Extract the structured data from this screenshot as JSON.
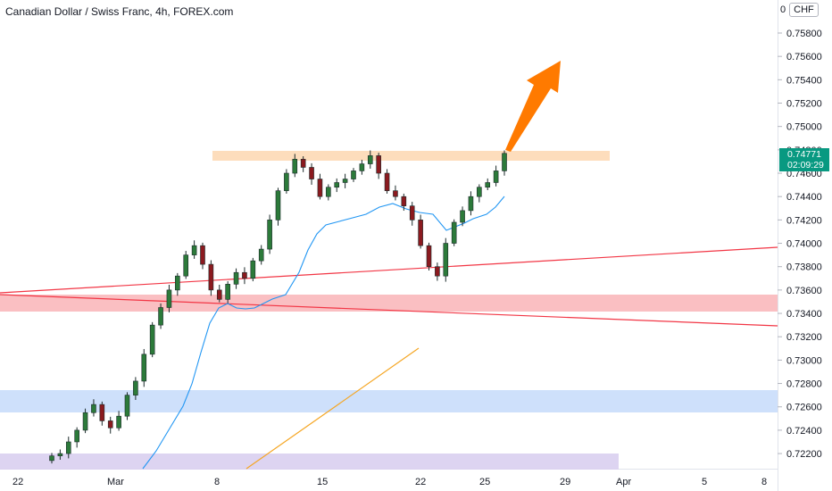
{
  "header": {
    "title": "Canadian Dollar / Swiss Franc, 4h, FOREX.com",
    "currency": "CHF",
    "currency_marker": "0"
  },
  "last_price": {
    "value": "0.74771",
    "countdown": "02:09:29"
  },
  "colors": {
    "up": "#089981",
    "down": "#f23645",
    "candle_body_dark": "#1b2a2a",
    "ma_line": "#2196f3",
    "resistance_zone": "#fdd9b5",
    "red_zone": "#f8a9ad",
    "blue_zone": "#c5dafa",
    "purple_zone": "#d9cff0",
    "trend_red": "#f23645",
    "trend_orange": "#f5a623",
    "arrow": "#ff7a00",
    "price_tag": "#089981"
  },
  "chart_data": {
    "type": "candlestick",
    "title": "Canadian Dollar / Swiss Franc, 4h, FOREX.com",
    "y_axis": {
      "ticks": [
        "0.75800",
        "0.75600",
        "0.75400",
        "0.75200",
        "0.75000",
        "0.74800",
        "0.74600",
        "0.74400",
        "0.74200",
        "0.74000",
        "0.73800",
        "0.73600",
        "0.73400",
        "0.73200",
        "0.73000",
        "0.72800",
        "0.72600",
        "0.72400",
        "0.72200"
      ],
      "range": [
        0.7215,
        0.7595
      ]
    },
    "x_axis": {
      "ticks": [
        "22",
        "Mar",
        "8",
        "15",
        "22",
        "25",
        "29",
        "Apr",
        "5",
        "8"
      ]
    },
    "ohlc_close_approx": [
      0.7218,
      0.722,
      0.723,
      0.724,
      0.7255,
      0.7262,
      0.7248,
      0.7242,
      0.7252,
      0.727,
      0.7282,
      0.7305,
      0.733,
      0.7345,
      0.736,
      0.7372,
      0.739,
      0.7398,
      0.7382,
      0.736,
      0.7352,
      0.7365,
      0.7375,
      0.737,
      0.7385,
      0.7395,
      0.742,
      0.7445,
      0.746,
      0.7472,
      0.7465,
      0.7455,
      0.744,
      0.7448,
      0.7452,
      0.7455,
      0.7462,
      0.7468,
      0.7475,
      0.746,
      0.7445,
      0.744,
      0.7432,
      0.742,
      0.7398,
      0.738,
      0.7372,
      0.74,
      0.7418,
      0.7428,
      0.744,
      0.7448,
      0.7452,
      0.7462,
      0.7477
    ],
    "zones": [
      {
        "name": "resistance",
        "low": 0.7472,
        "high": 0.748
      },
      {
        "name": "red-support",
        "low": 0.7343,
        "high": 0.7357
      },
      {
        "name": "blue-support",
        "low": 0.7256,
        "high": 0.7275
      },
      {
        "name": "purple-support",
        "low": 0.7205,
        "high": 0.7223
      }
    ],
    "lines": [
      {
        "name": "rising-trend-red",
        "from": [
          "start",
          0.7357
        ],
        "to": [
          "end",
          0.7397
        ]
      },
      {
        "name": "falling-trend-red",
        "from": [
          "start",
          0.7355
        ],
        "to": [
          "end",
          0.733
        ]
      }
    ],
    "annotation": {
      "type": "arrow",
      "direction": "up"
    }
  }
}
